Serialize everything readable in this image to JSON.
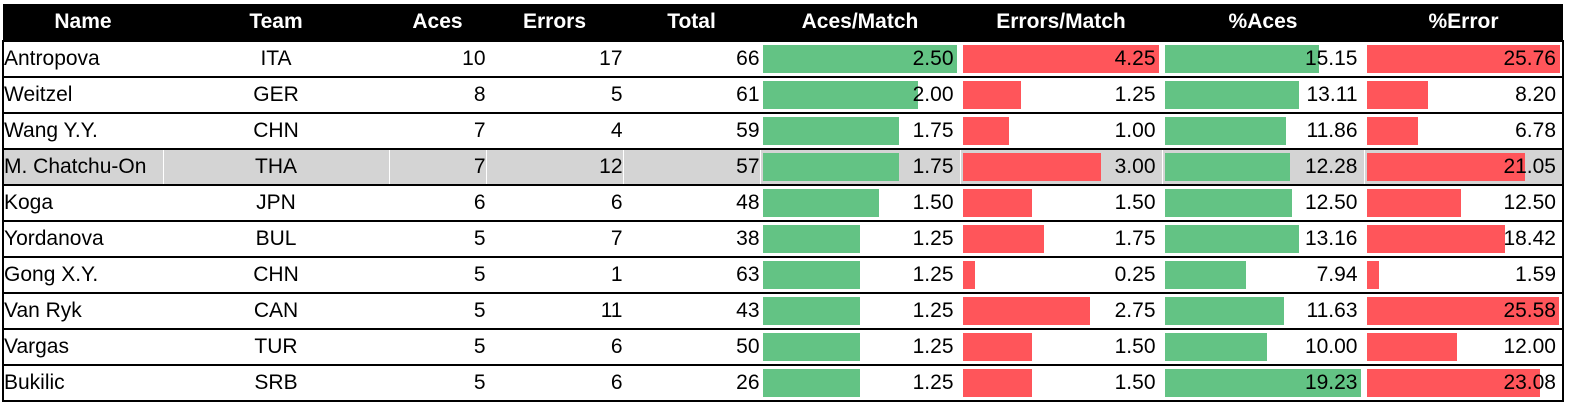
{
  "chart_data": {
    "type": "table",
    "columns": [
      "Name",
      "Team",
      "Aces",
      "Errors",
      "Total",
      "Aces/Match",
      "Errors/Match",
      "%Aces",
      "%Error"
    ],
    "rows": [
      {
        "name": "Antropova",
        "team": "ITA",
        "aces": "10",
        "errors": "17",
        "total": "66",
        "aces_match": "2.50",
        "errors_match": "4.25",
        "pct_aces": "15.15",
        "pct_error": "25.76"
      },
      {
        "name": "Weitzel",
        "team": "GER",
        "aces": "8",
        "errors": "5",
        "total": "61",
        "aces_match": "2.00",
        "errors_match": "1.25",
        "pct_aces": "13.11",
        "pct_error": "8.20"
      },
      {
        "name": "Wang Y.Y.",
        "team": "CHN",
        "aces": "7",
        "errors": "4",
        "total": "59",
        "aces_match": "1.75",
        "errors_match": "1.00",
        "pct_aces": "11.86",
        "pct_error": "6.78"
      },
      {
        "name": "M. Chatchu-On",
        "team": "THA",
        "aces": "7",
        "errors": "12",
        "total": "57",
        "aces_match": "1.75",
        "errors_match": "3.00",
        "pct_aces": "12.28",
        "pct_error": "21.05"
      },
      {
        "name": "Koga",
        "team": "JPN",
        "aces": "6",
        "errors": "6",
        "total": "48",
        "aces_match": "1.50",
        "errors_match": "1.50",
        "pct_aces": "12.50",
        "pct_error": "12.50"
      },
      {
        "name": "Yordanova",
        "team": "BUL",
        "aces": "5",
        "errors": "7",
        "total": "38",
        "aces_match": "1.25",
        "errors_match": "1.75",
        "pct_aces": "13.16",
        "pct_error": "18.42"
      },
      {
        "name": "Gong X.Y.",
        "team": "CHN",
        "aces": "5",
        "errors": "1",
        "total": "63",
        "aces_match": "1.25",
        "errors_match": "0.25",
        "pct_aces": "7.94",
        "pct_error": "1.59"
      },
      {
        "name": "Van Ryk",
        "team": "CAN",
        "aces": "5",
        "errors": "11",
        "total": "43",
        "aces_match": "1.25",
        "errors_match": "2.75",
        "pct_aces": "11.63",
        "pct_error": "25.58"
      },
      {
        "name": "Vargas",
        "team": "TUR",
        "aces": "5",
        "errors": "6",
        "total": "50",
        "aces_match": "1.25",
        "errors_match": "1.50",
        "pct_aces": "10.00",
        "pct_error": "12.00"
      },
      {
        "name": "Bukilic",
        "team": "SRB",
        "aces": "5",
        "errors": "6",
        "total": "26",
        "aces_match": "1.25",
        "errors_match": "1.50",
        "pct_aces": "19.23",
        "pct_error": "23.08"
      }
    ],
    "highlight_row": 3,
    "data_bar_columns": {
      "aces_match": {
        "color": "#63c384",
        "max": 2.5
      },
      "errors_match": {
        "color": "#ff555a",
        "max": 4.25
      },
      "pct_aces": {
        "color": "#63c384",
        "max": 19.23
      },
      "pct_error": {
        "color": "#ff555a",
        "max": 25.76
      }
    },
    "header_background": "#000000",
    "header_text_color": "#ffffff",
    "highlight_color": "#d4d4d4"
  }
}
